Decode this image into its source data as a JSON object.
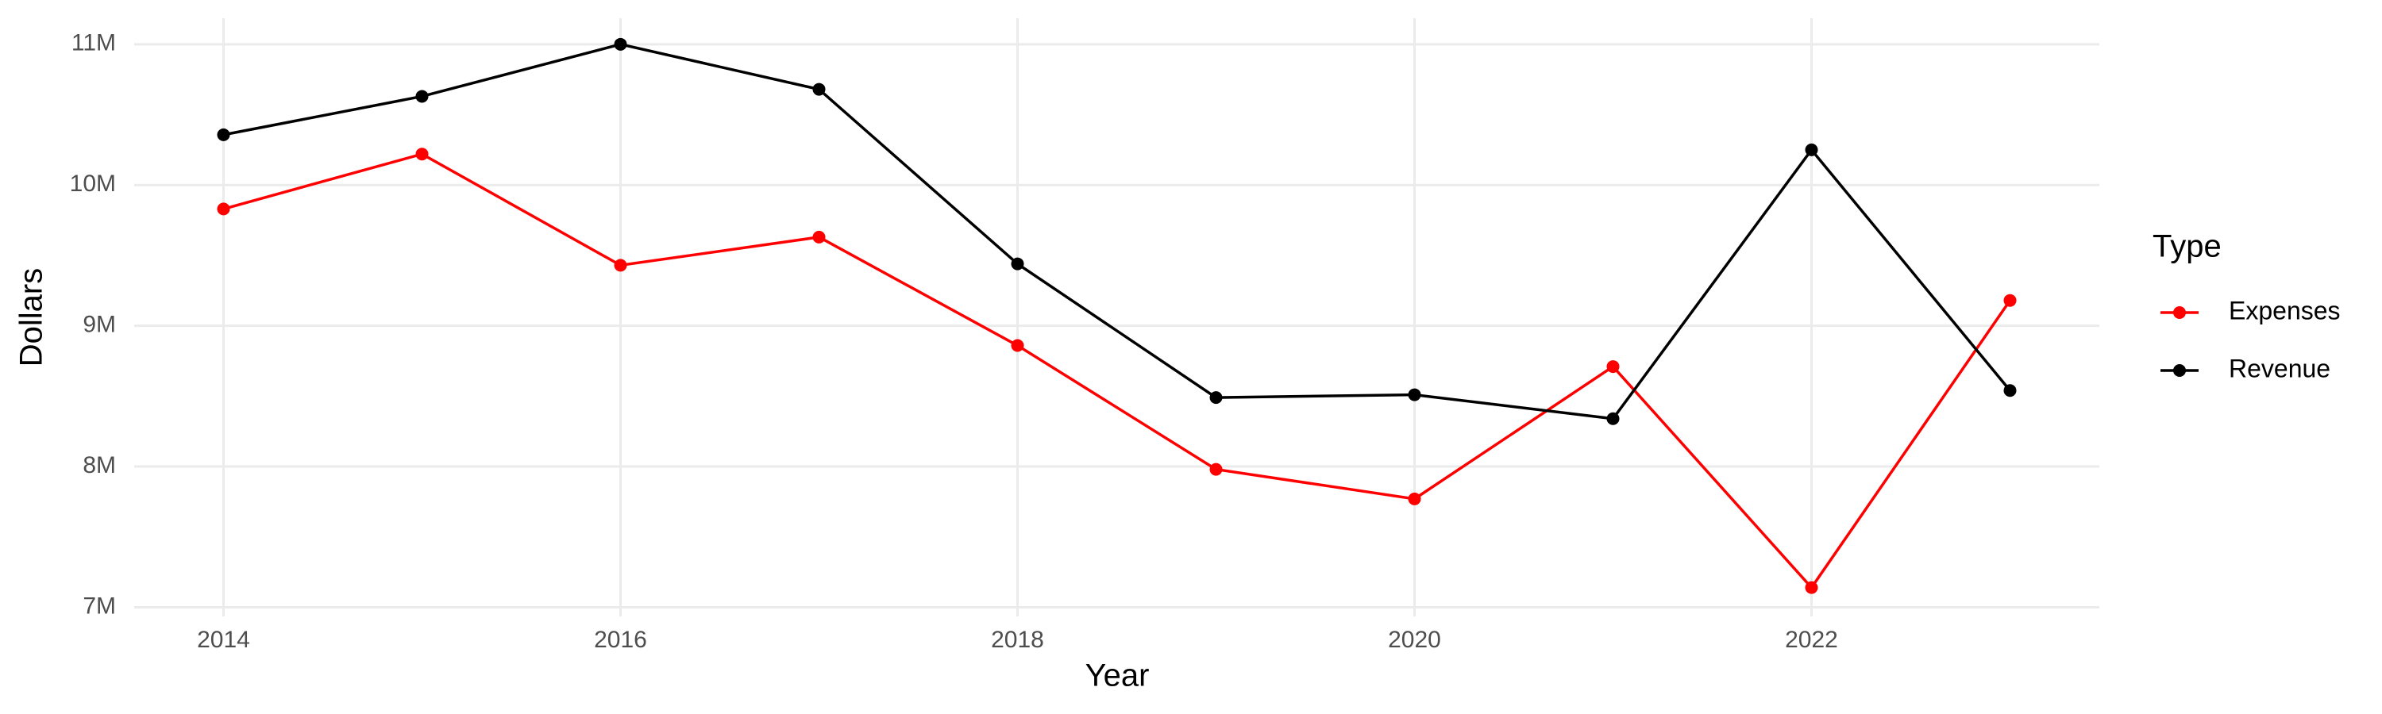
{
  "chart_data": {
    "type": "line",
    "x_label": "Year",
    "y_label": "Dollars",
    "x": [
      2014,
      2015,
      2016,
      2017,
      2018,
      2019,
      2020,
      2021,
      2022,
      2023
    ],
    "series": [
      {
        "name": "Expenses",
        "color": "#ff0000",
        "values": [
          9830000,
          10220000,
          9430000,
          9630000,
          8860000,
          7980000,
          7770000,
          8710000,
          7140000,
          9180000
        ]
      },
      {
        "name": "Revenue",
        "color": "#000000",
        "values": [
          10357000,
          10630000,
          11000000,
          10680000,
          9440000,
          8490000,
          8510000,
          8340000,
          10250000,
          8540000
        ]
      }
    ],
    "xlim": [
      2013.55,
      2023.45
    ],
    "xticks": [
      2014,
      2016,
      2018,
      2020,
      2022
    ],
    "ylim": [
      6935000,
      11185000
    ],
    "yticks": [
      {
        "value": 7000000,
        "label": "7M"
      },
      {
        "value": 8000000,
        "label": "8M"
      },
      {
        "value": 9000000,
        "label": "9M"
      },
      {
        "value": 10000000,
        "label": "10M"
      },
      {
        "value": 11000000,
        "label": "11M"
      }
    ],
    "grid": true,
    "legend_title": "Type",
    "legend_position": "right"
  }
}
